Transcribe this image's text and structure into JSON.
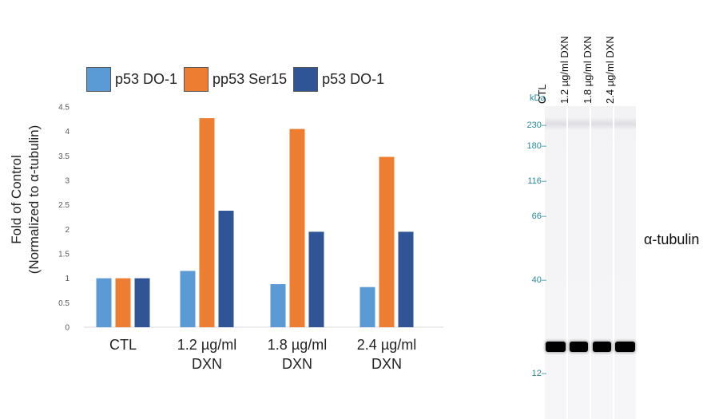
{
  "chart_data": {
    "type": "bar",
    "categories": [
      "CTL",
      "1.2 µg/ml\nDXN",
      "1.8 µg/ml\nDXN",
      "2.4 µg/ml\nDXN"
    ],
    "series": [
      {
        "name": "p53 DO-1",
        "values": [
          1.0,
          1.15,
          0.88,
          0.82
        ],
        "color": "#5b9bd5"
      },
      {
        "name": "pp53 Ser15",
        "values": [
          1.0,
          4.27,
          4.05,
          3.48
        ],
        "color": "#ed7d31"
      },
      {
        "name": "p53 DO-1",
        "values": [
          1.0,
          2.38,
          1.95,
          1.95
        ],
        "color": "#2f5597"
      }
    ],
    "ylabel_line1": "Fold of Control",
    "ylabel_line2": "(Normalized to α-tubulin)",
    "ylim": [
      0,
      4.5
    ],
    "yticks": [
      "0",
      "0.5",
      "1",
      "1.5",
      "2",
      "2.5",
      "3",
      "3.5",
      "4",
      "4.5"
    ],
    "grid": false,
    "legend_position": "top"
  },
  "blot": {
    "unit_label": "kDa",
    "lanes": [
      "CTL",
      "1.2 µg/ml DXN",
      "1.8 µg/ml DXN",
      "2.4 µg/ml DXN"
    ],
    "markers": [
      "230",
      "180",
      "116",
      "66",
      "40",
      "12"
    ],
    "band_label": "α-tubulin"
  }
}
